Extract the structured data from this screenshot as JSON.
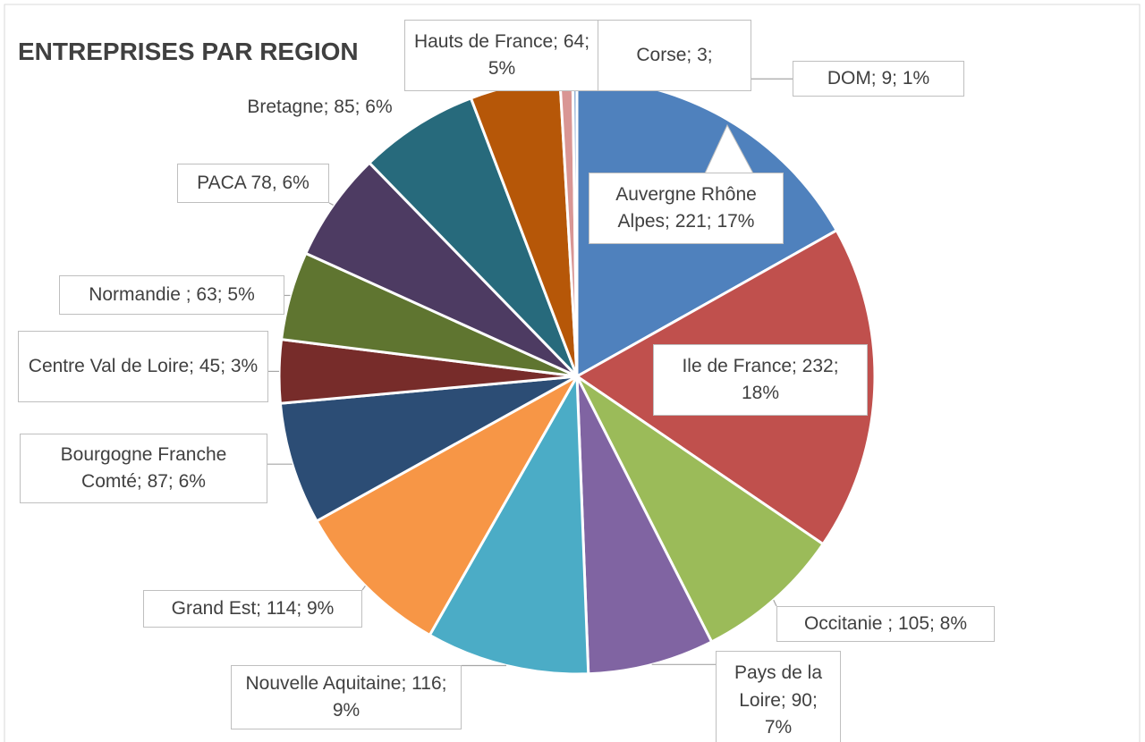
{
  "chart_data": {
    "type": "pie",
    "title": "ENTREPRISES PAR REGION",
    "categories": [
      "Auvergne Rhône Alpes",
      "Ile de France",
      "Occitanie",
      "Pays de la Loire",
      "Nouvelle Aquitaine",
      "Grand Est",
      "Bourgogne Franche Comté",
      "Centre Val de Loire",
      "Normandie",
      "PACA",
      "Bretagne",
      "Hauts de France",
      "DOM",
      "Corse"
    ],
    "values": [
      221,
      232,
      105,
      90,
      116,
      114,
      87,
      45,
      63,
      78,
      85,
      64,
      9,
      3
    ],
    "value_labels": [
      "Auvergne Rhône Alpes; 221; 17%",
      "Ile de France; 232; 18%",
      "Occitanie ; 105; 8%",
      "Pays de la Loire; 90; 7%",
      "Nouvelle Aquitaine; 116; 9%",
      "Grand Est; 114; 9%",
      "Bourgogne Franche Comté; 87; 6%",
      "Centre Val de Loire; 45; 3%",
      "Normandie ; 63; 5%",
      "PACA 78, 6%",
      "Bretagne; 85; 6%",
      "Hauts de France; 64; 5%",
      "DOM; 9; 1%",
      "Corse; 3;"
    ],
    "colors": [
      "#4f81bd",
      "#c0504d",
      "#9bbb59",
      "#8064a2",
      "#4bacc6",
      "#f79646",
      "#2c4d75",
      "#772c2a",
      "#5f7530",
      "#4d3b62",
      "#276a7c",
      "#b65708",
      "#d99694",
      "#95b3d7"
    ]
  }
}
